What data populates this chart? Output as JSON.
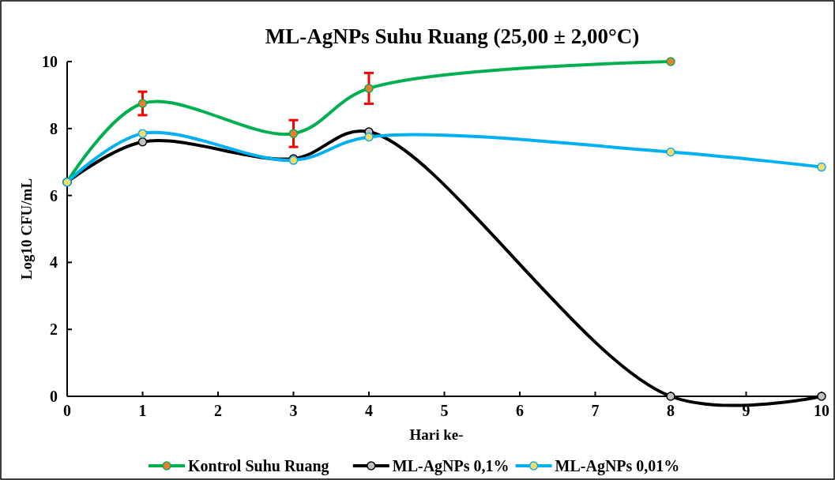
{
  "chart_data": {
    "type": "line",
    "title": "ML-AgNPs Suhu Ruang (25,00 ± 2,00°C)",
    "xlabel": "Hari ke-",
    "ylabel": "Log10 CFU/mL",
    "xlim": [
      0,
      10
    ],
    "xticks": [
      0,
      1,
      2,
      3,
      4,
      5,
      6,
      7,
      8,
      9,
      10
    ],
    "ylim": [
      0,
      10
    ],
    "yticks": [
      0,
      2,
      4,
      6,
      8,
      10
    ],
    "grid": false,
    "legend": "bottom",
    "marker": "circle",
    "line_style": "solid",
    "series": [
      {
        "name": "Kontrol Suhu Ruang",
        "color": "#00b050",
        "x": [
          0,
          1,
          3,
          4,
          8
        ],
        "values": [
          6.4,
          8.75,
          7.85,
          9.2,
          10.0
        ],
        "errors": [
          null,
          0.35,
          0.4,
          0.46,
          null
        ]
      },
      {
        "name": "ML-AgNPs 0,1%",
        "color": "#000000",
        "x": [
          0,
          1,
          3,
          4,
          8,
          10
        ],
        "values": [
          6.4,
          7.6,
          7.1,
          7.9,
          0,
          0
        ]
      },
      {
        "name": "ML-AgNPs 0,01%",
        "color": "#00b0f0",
        "x": [
          0,
          1,
          3,
          4,
          8,
          10
        ],
        "values": [
          6.4,
          7.85,
          7.05,
          7.75,
          7.3,
          6.85
        ]
      }
    ]
  }
}
